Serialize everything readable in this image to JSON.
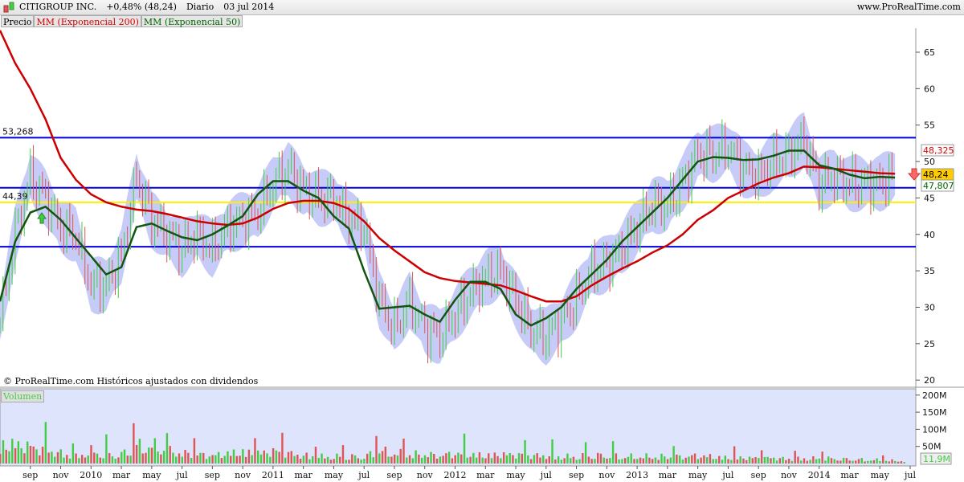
{
  "header": {
    "title": "CITIGROUP INC.",
    "change": "+0,48% (48,24)",
    "period": "Diario",
    "date": "03 jul 2014",
    "site": "www.ProRealTime.com"
  },
  "legend": {
    "price": "Precio",
    "ema200": "MM (Exponencial 200)",
    "ema50": "MM (Exponencial 50)"
  },
  "footer": {
    "copyright": "© ProRealTime.com  Históricos ajustados con dividendos"
  },
  "volume_pane": {
    "label": "Volumen",
    "last": "11,9M"
  },
  "colors": {
    "up": "#44cc44",
    "down": "#dd5555",
    "ema200": "#cc0000",
    "ema50": "#115511",
    "band": "#b8bff5",
    "hline": "#0000dd",
    "support": "#ffee00",
    "volume_bg": "#dde4fb"
  },
  "chart_data": [
    {
      "type": "line",
      "title": "CITIGROUP INC.",
      "yticks": [
        20,
        25,
        30,
        35,
        40,
        45,
        50,
        55,
        60,
        65
      ],
      "ylim": [
        20,
        70
      ],
      "xticks": [
        {
          "m": 2,
          "label": "sep"
        },
        {
          "m": 4,
          "label": "nov"
        },
        {
          "m": 6,
          "label": "2010"
        },
        {
          "m": 8,
          "label": "mar"
        },
        {
          "m": 10,
          "label": "may"
        },
        {
          "m": 12,
          "label": "jul"
        },
        {
          "m": 14,
          "label": "sep"
        },
        {
          "m": 16,
          "label": "nov"
        },
        {
          "m": 18,
          "label": "2011"
        },
        {
          "m": 20,
          "label": "mar"
        },
        {
          "m": 22,
          "label": "may"
        },
        {
          "m": 24,
          "label": "jul"
        },
        {
          "m": 26,
          "label": "sep"
        },
        {
          "m": 28,
          "label": "nov"
        },
        {
          "m": 30,
          "label": "2012"
        },
        {
          "m": 32,
          "label": "mar"
        },
        {
          "m": 34,
          "label": "may"
        },
        {
          "m": 36,
          "label": "jul"
        },
        {
          "m": 38,
          "label": "sep"
        },
        {
          "m": 40,
          "label": "nov"
        },
        {
          "m": 42,
          "label": "2013"
        },
        {
          "m": 44,
          "label": "mar"
        },
        {
          "m": 46,
          "label": "may"
        },
        {
          "m": 48,
          "label": "jul"
        },
        {
          "m": 50,
          "label": "sep"
        },
        {
          "m": 52,
          "label": "nov"
        },
        {
          "m": 54,
          "label": "2014"
        },
        {
          "m": 56,
          "label": "mar"
        },
        {
          "m": 58,
          "label": "may"
        },
        {
          "m": 60,
          "label": "jul"
        }
      ],
      "dates": [
        "2009-07",
        "2009-08",
        "2009-09",
        "2009-10",
        "2009-11",
        "2009-12",
        "2010-01",
        "2010-02",
        "2010-03",
        "2010-04",
        "2010-05",
        "2010-06",
        "2010-07",
        "2010-08",
        "2010-09",
        "2010-10",
        "2010-11",
        "2010-12",
        "2011-01",
        "2011-02",
        "2011-03",
        "2011-04",
        "2011-05",
        "2011-06",
        "2011-07",
        "2011-08",
        "2011-09",
        "2011-10",
        "2011-11",
        "2011-12",
        "2012-01",
        "2012-02",
        "2012-03",
        "2012-04",
        "2012-05",
        "2012-06",
        "2012-07",
        "2012-08",
        "2012-09",
        "2012-10",
        "2012-11",
        "2012-12",
        "2013-01",
        "2013-02",
        "2013-03",
        "2013-04",
        "2013-05",
        "2013-06",
        "2013-07",
        "2013-08",
        "2013-09",
        "2013-10",
        "2013-11",
        "2013-12",
        "2014-01",
        "2014-02",
        "2014-03",
        "2014-04",
        "2014-05",
        "2014-06"
      ],
      "series": [
        {
          "name": "Precio",
          "values": [
            28,
            40,
            48,
            45,
            41,
            40,
            33,
            33,
            37,
            48,
            42,
            40,
            38,
            40,
            38,
            41,
            42,
            43,
            47,
            49,
            46,
            45,
            45,
            42,
            41,
            31,
            27,
            31,
            27,
            26,
            29,
            32,
            34,
            35,
            31,
            27,
            26,
            28,
            31,
            35,
            36,
            38,
            41,
            44,
            44,
            47,
            51,
            51,
            52,
            49,
            48,
            50,
            51,
            53,
            47,
            48,
            47,
            47,
            47,
            48.24
          ]
        },
        {
          "name": "MM (Exponencial 200)",
          "values": [
            68,
            63.5,
            60,
            55.8,
            50.5,
            47.5,
            45.5,
            44.4,
            43.8,
            43.4,
            43.2,
            42.8,
            42.3,
            41.8,
            41.5,
            41.3,
            41.5,
            42.3,
            43.5,
            44.3,
            44.6,
            44.6,
            44.3,
            43.5,
            41.8,
            39.5,
            37.8,
            36.3,
            34.8,
            34,
            33.6,
            33.4,
            33.2,
            33,
            32.3,
            31.5,
            30.8,
            30.8,
            31.5,
            33,
            34.2,
            35.3,
            36.3,
            37.5,
            38.5,
            40,
            42,
            43.3,
            45,
            46,
            47,
            47.8,
            48.4,
            49.3,
            49.2,
            49,
            48.8,
            48.6,
            48.4,
            48.325
          ]
        },
        {
          "name": "MM (Exponencial 50)",
          "values": [
            30.8,
            39,
            43,
            43.8,
            42,
            39.5,
            37,
            34.5,
            35.5,
            41,
            41.5,
            40.5,
            39.6,
            39.2,
            40,
            41.2,
            42.5,
            45.5,
            47.3,
            47.3,
            46,
            45,
            42.5,
            40.8,
            35,
            29.8,
            30,
            30.2,
            29,
            28,
            31,
            33.5,
            33.5,
            32.5,
            29,
            27.5,
            28.5,
            30,
            32.5,
            34.5,
            36.5,
            39,
            41,
            43,
            45,
            47.5,
            50,
            50.6,
            50.5,
            50.2,
            50.3,
            50.8,
            51.5,
            51.5,
            49.5,
            49,
            48.2,
            47.7,
            47.9,
            47.807
          ]
        }
      ],
      "last_values": {
        "ema200": "48,325",
        "price": "48,24",
        "ema50": "47,807"
      },
      "hlines": [
        {
          "value": 53.268,
          "label": "53,268",
          "color": "#0000dd"
        },
        {
          "value": 46.4,
          "label": "",
          "color": "#0000dd"
        },
        {
          "value": 44.39,
          "label": "44,39",
          "color": "#ffee00"
        },
        {
          "value": 38.3,
          "label": "",
          "color": "#0000dd"
        }
      ]
    },
    {
      "type": "bar",
      "title": "Volumen",
      "yticks": [
        {
          "v": 50,
          "label": "50M"
        },
        {
          "v": 100,
          "label": "100M"
        },
        {
          "v": 150,
          "label": "150M"
        },
        {
          "v": 200,
          "label": "200M"
        }
      ],
      "ylabel": "",
      "volume_millions": [
        80,
        85,
        75,
        60,
        45,
        30,
        55,
        40,
        40,
        75,
        80,
        55,
        45,
        40,
        35,
        45,
        50,
        45,
        55,
        45,
        35,
        30,
        30,
        30,
        30,
        55,
        45,
        40,
        40,
        35,
        45,
        40,
        35,
        40,
        40,
        35,
        35,
        30,
        30,
        35,
        35,
        30,
        30,
        30,
        30,
        30,
        35,
        30,
        25,
        25,
        25,
        25,
        20,
        22,
        22,
        22,
        18,
        17,
        15,
        11.9
      ]
    }
  ]
}
